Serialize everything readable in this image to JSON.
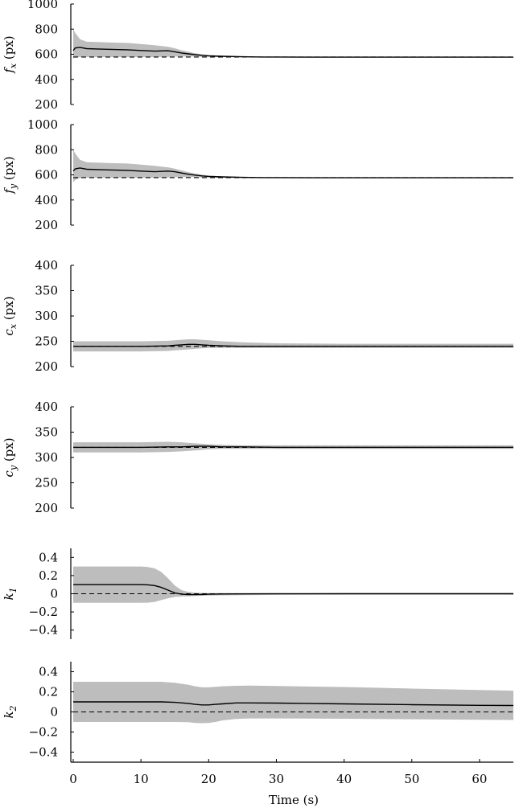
{
  "chart_data": [
    {
      "type": "area",
      "ylabel_sym": "f",
      "ylabel_sub": "x",
      "ylabel_unit": "(px)",
      "ylim": [
        200,
        1000
      ],
      "yticks": [
        200,
        400,
        600,
        800,
        1000
      ],
      "xlim": [
        0,
        65
      ],
      "true_value": 578,
      "series": [
        {
          "x": [
            0,
            0.3,
            1,
            2,
            5,
            8,
            10,
            12,
            14,
            15,
            16,
            17,
            18,
            19,
            20,
            22,
            25,
            28,
            30,
            35,
            40,
            50,
            60,
            65
          ],
          "mean": [
            630,
            650,
            655,
            645,
            640,
            636,
            630,
            625,
            628,
            620,
            610,
            603,
            597,
            592,
            588,
            584,
            580,
            578,
            578,
            577,
            577,
            577,
            577,
            577
          ],
          "upper": [
            800,
            770,
            720,
            700,
            695,
            690,
            682,
            672,
            660,
            648,
            632,
            620,
            608,
            600,
            594,
            588,
            583,
            580,
            579,
            578,
            578,
            578,
            578,
            578
          ],
          "lower": [
            570,
            575,
            578,
            578,
            578,
            578,
            578,
            578,
            580,
            582,
            583,
            583,
            582,
            580,
            579,
            577,
            576,
            576,
            576,
            576,
            576,
            576,
            576,
            576
          ]
        }
      ]
    },
    {
      "type": "area",
      "ylabel_sym": "f",
      "ylabel_sub": "y",
      "ylabel_unit": "(px)",
      "ylim": [
        200,
        1000
      ],
      "yticks": [
        200,
        400,
        600,
        800,
        1000
      ],
      "xlim": [
        0,
        65
      ],
      "true_value": 578,
      "series": [
        {
          "x": [
            0,
            0.3,
            1,
            2,
            5,
            8,
            10,
            12,
            14,
            15,
            16,
            17,
            18,
            19,
            20,
            22,
            25,
            28,
            30,
            35,
            40,
            50,
            60,
            65
          ],
          "mean": [
            630,
            648,
            655,
            645,
            640,
            636,
            630,
            625,
            630,
            625,
            615,
            605,
            598,
            592,
            588,
            584,
            580,
            578,
            578,
            577,
            577,
            577,
            577,
            577
          ],
          "upper": [
            800,
            770,
            720,
            700,
            695,
            690,
            682,
            672,
            660,
            650,
            635,
            622,
            610,
            602,
            595,
            588,
            583,
            580,
            579,
            578,
            578,
            578,
            578,
            578
          ],
          "lower": [
            540,
            560,
            575,
            578,
            578,
            578,
            578,
            578,
            580,
            582,
            583,
            583,
            582,
            580,
            579,
            577,
            576,
            576,
            576,
            576,
            576,
            576,
            576,
            576
          ]
        }
      ]
    },
    {
      "type": "area",
      "ylabel_sym": "c",
      "ylabel_sub": "x",
      "ylabel_unit": "(px)",
      "ylim": [
        200,
        400
      ],
      "yticks": [
        200,
        250,
        300,
        350,
        400
      ],
      "xlim": [
        0,
        65
      ],
      "true_value": 240,
      "series": [
        {
          "x": [
            0,
            5,
            10,
            14,
            15,
            16,
            17,
            18,
            19,
            20,
            22,
            25,
            30,
            40,
            50,
            60,
            65
          ],
          "mean": [
            240,
            240,
            240,
            241,
            242,
            243,
            244,
            244,
            243,
            242,
            241,
            240,
            240,
            240,
            240,
            240,
            240
          ],
          "upper": [
            250,
            250,
            250,
            251,
            252,
            253,
            254,
            254,
            253,
            252,
            250,
            248,
            246,
            245,
            245,
            245,
            245
          ],
          "lower": [
            230,
            230,
            230,
            231,
            232,
            233,
            234,
            235,
            236,
            237,
            237,
            237,
            237,
            237,
            237,
            237,
            237
          ]
        }
      ]
    },
    {
      "type": "area",
      "ylabel_sym": "c",
      "ylabel_sub": "y",
      "ylabel_unit": "(px)",
      "ylim": [
        200,
        400
      ],
      "yticks": [
        200,
        250,
        300,
        350,
        400
      ],
      "xlim": [
        0,
        65
      ],
      "true_value": 320,
      "series": [
        {
          "x": [
            0,
            5,
            10,
            14,
            16,
            18,
            20,
            22,
            25,
            30,
            40,
            50,
            60,
            65
          ],
          "mean": [
            320,
            320,
            320,
            321,
            321,
            322,
            322,
            321,
            321,
            320,
            320,
            320,
            320,
            320
          ],
          "upper": [
            330,
            330,
            330,
            331,
            330,
            328,
            326,
            325,
            324,
            324,
            324,
            324,
            324,
            324
          ],
          "lower": [
            310,
            310,
            310,
            311,
            312,
            314,
            316,
            317,
            317,
            317,
            317,
            317,
            317,
            317
          ]
        }
      ]
    },
    {
      "type": "area",
      "ylabel_sym": "k",
      "ylabel_sub": "1",
      "ylabel_unit": "",
      "ylim": [
        -0.5,
        0.5
      ],
      "yticks": [
        -0.4,
        -0.2,
        0,
        0.2,
        0.4
      ],
      "xlim": [
        0,
        65
      ],
      "true_value": 0,
      "series": [
        {
          "x": [
            0,
            2,
            5,
            8,
            10,
            11,
            12,
            13,
            14,
            15,
            16,
            17,
            18,
            19,
            20,
            22,
            25,
            30,
            40,
            50,
            60,
            65
          ],
          "mean": [
            0.1,
            0.1,
            0.1,
            0.1,
            0.1,
            0.098,
            0.09,
            0.07,
            0.04,
            0.01,
            -0.005,
            -0.01,
            -0.01,
            -0.008,
            -0.005,
            -0.003,
            -0.002,
            -0.001,
            0,
            0,
            0,
            0
          ],
          "upper": [
            0.3,
            0.3,
            0.3,
            0.3,
            0.3,
            0.295,
            0.28,
            0.24,
            0.17,
            0.09,
            0.04,
            0.02,
            0.012,
            0.01,
            0.008,
            0.008,
            0.008,
            0.008,
            0.008,
            0.008,
            0.008,
            0.008
          ],
          "lower": [
            -0.1,
            -0.1,
            -0.1,
            -0.1,
            -0.1,
            -0.098,
            -0.09,
            -0.07,
            -0.05,
            -0.035,
            -0.03,
            -0.028,
            -0.025,
            -0.022,
            -0.02,
            -0.018,
            -0.015,
            -0.012,
            -0.01,
            -0.01,
            -0.01,
            -0.01
          ]
        }
      ]
    },
    {
      "type": "area",
      "ylabel_sym": "k",
      "ylabel_sub": "2",
      "ylabel_unit": "",
      "ylim": [
        -0.5,
        0.5
      ],
      "yticks": [
        -0.4,
        -0.2,
        0,
        0.2,
        0.4
      ],
      "xlim": [
        0,
        65
      ],
      "xticks": [
        0,
        10,
        20,
        30,
        40,
        50,
        60
      ],
      "xlabel": "Time (s)",
      "true_value": 0,
      "series": [
        {
          "x": [
            0,
            5,
            10,
            13,
            15,
            17,
            18,
            19,
            20,
            21,
            22,
            24,
            26,
            30,
            40,
            50,
            60,
            65
          ],
          "mean": [
            0.1,
            0.1,
            0.1,
            0.1,
            0.095,
            0.085,
            0.075,
            0.07,
            0.07,
            0.075,
            0.08,
            0.09,
            0.09,
            0.088,
            0.08,
            0.072,
            0.066,
            0.064
          ],
          "upper": [
            0.3,
            0.3,
            0.3,
            0.3,
            0.29,
            0.27,
            0.255,
            0.245,
            0.245,
            0.25,
            0.255,
            0.26,
            0.262,
            0.258,
            0.248,
            0.232,
            0.218,
            0.212
          ],
          "lower": [
            -0.1,
            -0.1,
            -0.1,
            -0.1,
            -0.1,
            -0.102,
            -0.11,
            -0.112,
            -0.11,
            -0.1,
            -0.085,
            -0.07,
            -0.065,
            -0.065,
            -0.068,
            -0.073,
            -0.078,
            -0.08
          ]
        }
      ]
    }
  ]
}
